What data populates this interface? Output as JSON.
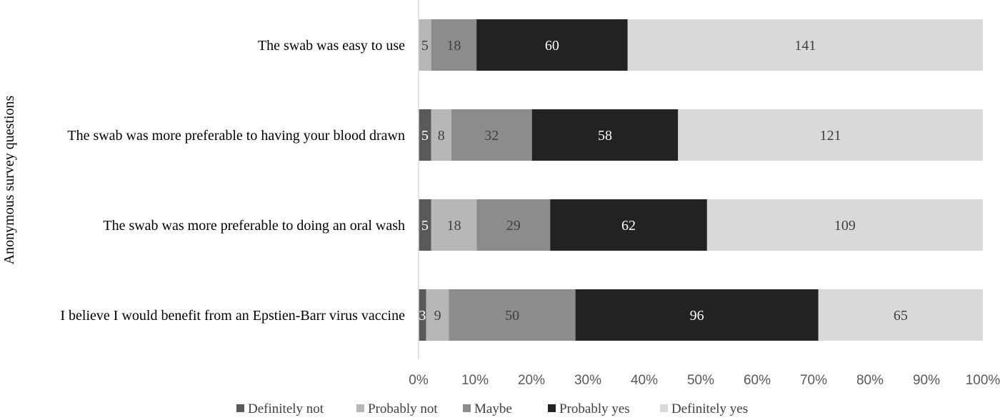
{
  "chart_data": {
    "type": "bar",
    "orientation": "horizontal",
    "stacked": "percent",
    "title": "",
    "xlabel": "",
    "ylabel": "Anonymous survey questions",
    "categories": [
      "The swab was easy to use",
      "The swab was more preferable to having your blood drawn",
      "The swab was more preferable to doing an oral wash",
      "I believe I would benefit from an Epstien-Barr virus vaccine"
    ],
    "series": [
      {
        "name": "Definitely not",
        "color": "#595959",
        "label_color": "#ffffff",
        "values": [
          0,
          5,
          5,
          3
        ]
      },
      {
        "name": "Probably not",
        "color": "#b7b7b7",
        "label_color": "#404040",
        "values": [
          5,
          8,
          18,
          9
        ]
      },
      {
        "name": "Maybe",
        "color": "#8c8c8c",
        "label_color": "#404040",
        "values": [
          18,
          32,
          29,
          50
        ]
      },
      {
        "name": "Probably yes",
        "color": "#222222",
        "label_color": "#ffffff",
        "values": [
          60,
          58,
          62,
          96
        ]
      },
      {
        "name": "Definitely yes",
        "color": "#d9d9d9",
        "label_color": "#404040",
        "values": [
          141,
          121,
          109,
          65
        ]
      }
    ],
    "xlim": [
      0,
      100
    ],
    "xticks": [
      "0%",
      "10%",
      "20%",
      "30%",
      "40%",
      "50%",
      "60%",
      "70%",
      "80%",
      "90%",
      "100%"
    ],
    "grid": false,
    "legend_position": "bottom"
  }
}
